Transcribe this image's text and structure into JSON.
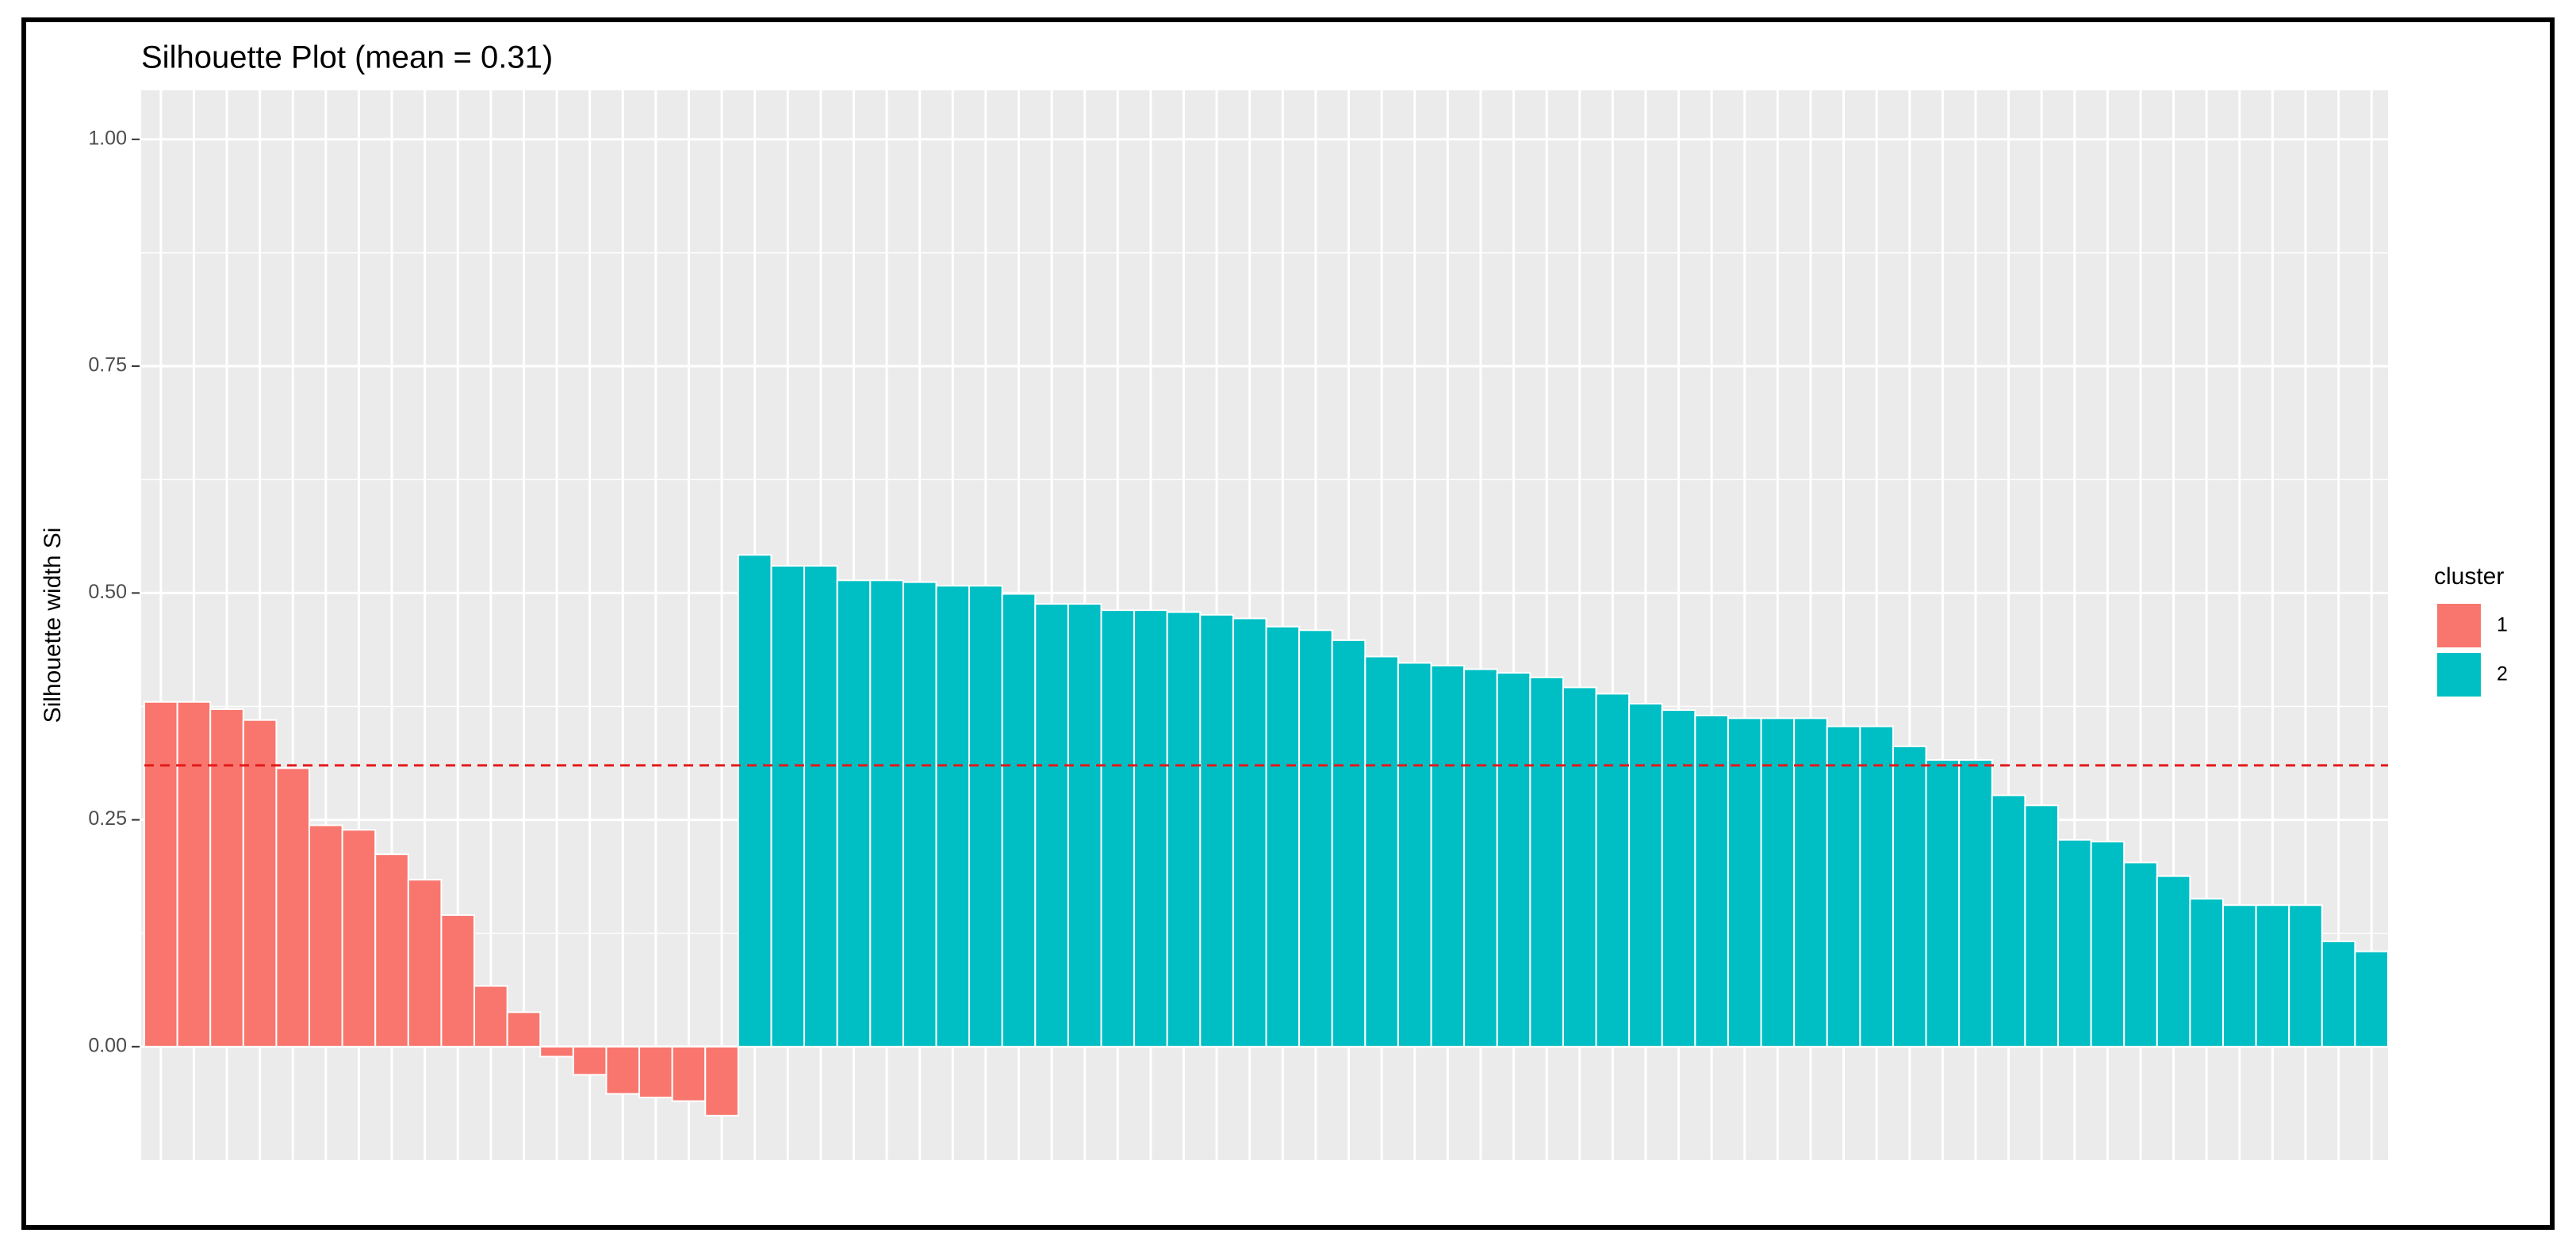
{
  "chart_data": {
    "type": "bar",
    "title": "Silhouette Plot (mean = 0.31)",
    "y_label": "Silhouette width Si",
    "legend_title": "cluster",
    "legend": "right",
    "grid": true,
    "mean": 0.31,
    "mean_color": "#e41a1c",
    "ylim": [
      -0.125,
      1.054
    ],
    "yticks": [
      {
        "value": 0,
        "label": "0.00"
      },
      {
        "value": 0.25,
        "label": "0.25"
      },
      {
        "value": 0.5,
        "label": "0.50"
      },
      {
        "value": 0.75,
        "label": "0.75"
      },
      {
        "value": 1,
        "label": "1.00"
      }
    ],
    "categories": [
      null,
      null,
      null,
      null,
      null,
      null,
      null,
      null,
      null,
      null,
      null,
      null,
      null,
      null,
      null,
      null,
      null,
      null,
      null,
      null,
      null,
      null,
      null,
      null,
      null,
      null,
      null,
      null,
      null,
      null,
      null,
      null,
      null,
      null,
      null,
      null,
      null,
      null,
      null,
      null,
      null,
      null,
      null,
      null,
      null,
      null,
      null,
      null,
      null,
      null,
      null,
      null,
      null,
      null,
      null,
      null,
      null,
      null,
      null,
      null,
      null,
      null,
      null,
      null,
      null,
      null,
      null,
      null
    ],
    "series": [
      {
        "name": "1",
        "color": "#f8766d",
        "values": [
          0.38,
          0.38,
          0.372,
          0.36,
          0.307,
          0.244,
          0.239,
          0.212,
          0.184,
          0.145,
          0.067,
          0.038,
          -0.011,
          -0.031,
          -0.052,
          -0.056,
          -0.06,
          -0.076,
          null,
          null,
          null,
          null,
          null,
          null,
          null,
          null,
          null,
          null,
          null,
          null,
          null,
          null,
          null,
          null,
          null,
          null,
          null,
          null,
          null,
          null,
          null,
          null,
          null,
          null,
          null,
          null,
          null,
          null,
          null,
          null,
          null,
          null,
          null,
          null,
          null,
          null,
          null,
          null,
          null,
          null,
          null,
          null,
          null,
          null,
          null,
          null,
          null,
          null
        ]
      },
      {
        "name": "2",
        "color": "#00bfc4",
        "values": [
          null,
          null,
          null,
          null,
          null,
          null,
          null,
          null,
          null,
          null,
          null,
          null,
          null,
          null,
          null,
          null,
          null,
          null,
          0.542,
          0.53,
          0.53,
          0.514,
          0.514,
          0.512,
          0.508,
          0.508,
          0.499,
          0.488,
          0.488,
          0.481,
          0.481,
          0.479,
          0.476,
          0.472,
          0.463,
          0.459,
          0.448,
          0.43,
          0.423,
          0.42,
          0.416,
          0.412,
          0.407,
          0.396,
          0.389,
          0.378,
          0.371,
          0.365,
          0.362,
          0.362,
          0.362,
          0.353,
          0.353,
          0.331,
          0.316,
          0.316,
          0.277,
          0.266,
          0.228,
          0.226,
          0.203,
          0.188,
          0.163,
          0.156,
          0.156,
          0.156,
          0.116,
          0.105
        ]
      }
    ]
  }
}
